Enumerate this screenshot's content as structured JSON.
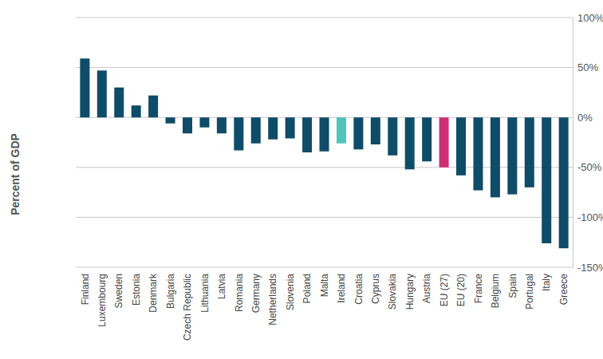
{
  "chart_data": {
    "type": "bar",
    "y_label": "Percent of GDP",
    "categories": [
      "Finland",
      "Luxembourg",
      "Sweden",
      "Estonia",
      "Denmark",
      "Bulgaria",
      "Czech Republic",
      "Lithuania",
      "Latvia",
      "Romania",
      "Germany",
      "Netherlands",
      "Slovenia",
      "Poland",
      "Malta",
      "Ireland",
      "Croatia",
      "Cyprus",
      "Slovakia",
      "Hungary",
      "Austria",
      "EU (27)",
      "EU (20)",
      "France",
      "Belgium",
      "Spain",
      "Portugal",
      "Italy",
      "Greece"
    ],
    "values": [
      59,
      47,
      30,
      12,
      22,
      -6,
      -16,
      -10,
      -16,
      -33,
      -26,
      -22,
      -21,
      -35,
      -34,
      -26,
      -32,
      -27,
      -38,
      -52,
      -44,
      -50,
      -58,
      -73,
      -80,
      -77,
      -70,
      -126,
      -131
    ],
    "colors": [
      "#0f4c68",
      "#0f4c68",
      "#0f4c68",
      "#0f4c68",
      "#0f4c68",
      "#0f4c68",
      "#0f4c68",
      "#0f4c68",
      "#0f4c68",
      "#0f4c68",
      "#0f4c68",
      "#0f4c68",
      "#0f4c68",
      "#0f4c68",
      "#0f4c68",
      "#4fc4bb",
      "#0f4c68",
      "#0f4c68",
      "#0f4c68",
      "#0f4c68",
      "#0f4c68",
      "#cc2f74",
      "#0f4c68",
      "#0f4c68",
      "#0f4c68",
      "#0f4c68",
      "#0f4c68",
      "#0f4c68",
      "#0f4c68"
    ],
    "ylim": [
      -150,
      100
    ],
    "yticks": [
      {
        "value": 100,
        "label": "100%"
      },
      {
        "value": 50,
        "label": "50%"
      },
      {
        "value": 0,
        "label": "0%"
      },
      {
        "value": -50,
        "label": "-50%"
      },
      {
        "value": -100,
        "label": "-100%"
      },
      {
        "value": -150,
        "label": "-150%"
      }
    ],
    "grid": true
  }
}
